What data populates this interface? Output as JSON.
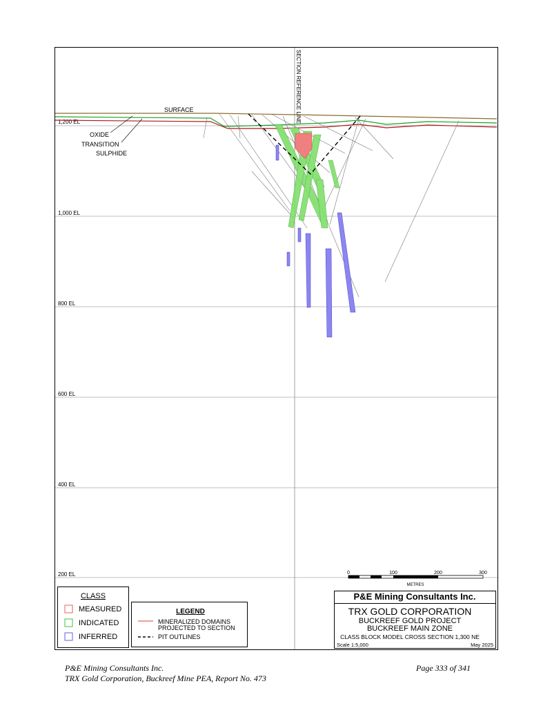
{
  "drawing": {
    "section_label": "SECTION REFERENCE LINE",
    "surface": "SURFACE",
    "weathering": [
      "OXIDE",
      "TRANSITION",
      "SULPHIDE"
    ],
    "elevations": [
      "1,200 EL",
      "1,000 EL",
      "800 EL",
      "600 EL",
      "400 EL",
      "200 EL"
    ],
    "scale_bar": {
      "ticks": [
        "0",
        "100",
        "200",
        "300"
      ],
      "unit": "METRES"
    }
  },
  "class_legend": {
    "title": "CLASS",
    "items": [
      "MEASURED",
      "INDICATED",
      "INFERRED"
    ]
  },
  "legend": {
    "items_title": "LEGEND",
    "items": [
      [
        "MINERALIZED DOMAINS",
        "PROJECTED TO SECTION"
      ],
      [
        "PIT OUTLINES"
      ]
    ]
  },
  "title_block": {
    "company": "P&E Mining Consultants Inc.",
    "client": "TRX GOLD CORPORATION",
    "project": "BUCKREEF GOLD PROJECT",
    "zone": "BUCKREEF MAIN ZONE",
    "description": "CLASS BLOCK MODEL CROSS SECTION 1,300 NE",
    "scale": "Scale 1:5,000",
    "date": "May 2025"
  },
  "footer": {
    "left": [
      "P&E Mining Consultants Inc.",
      "TRX Gold Corporation, Buckreef Mine PEA, Report No. 473"
    ],
    "right": "Page 333 of 341"
  }
}
